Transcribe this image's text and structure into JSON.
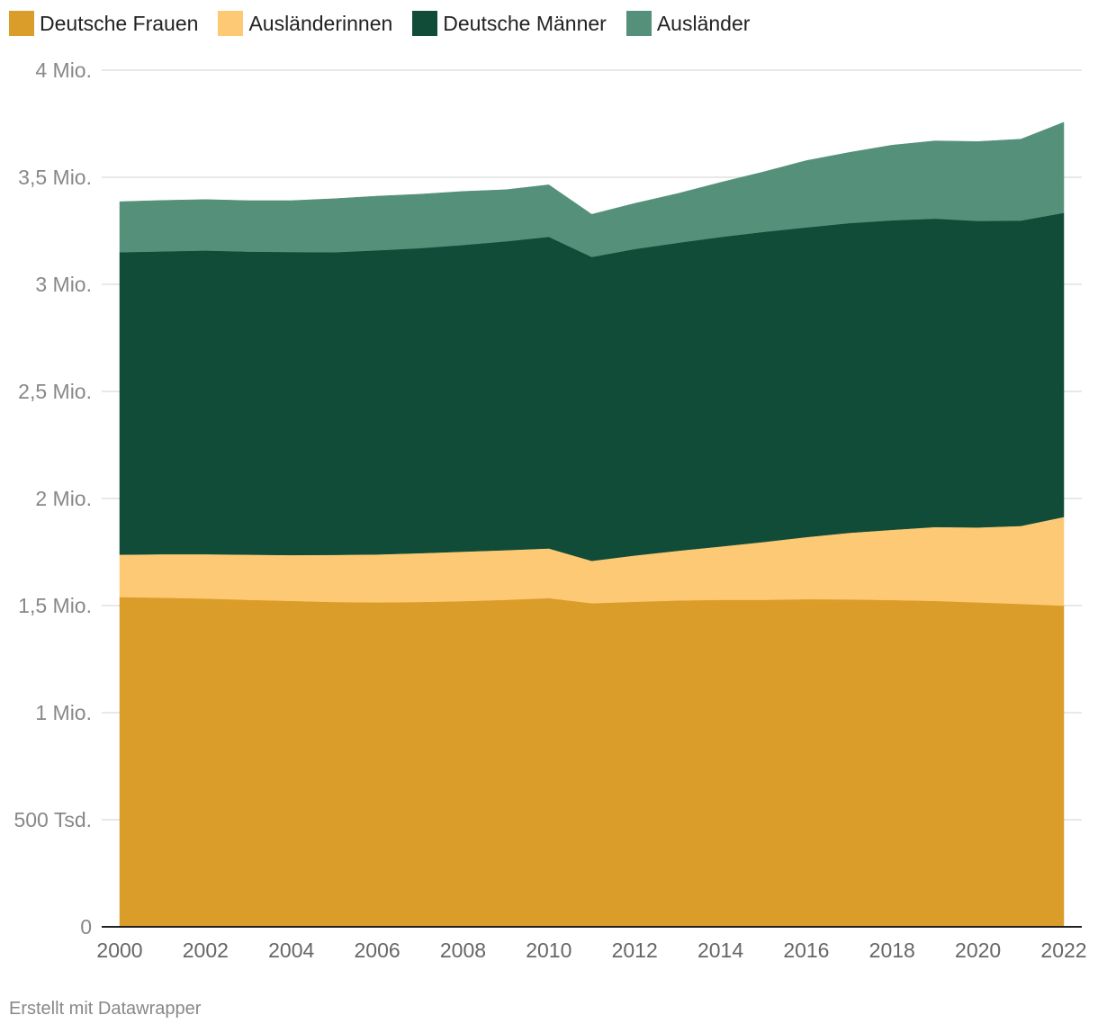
{
  "colors": {
    "deutsche_frauen": "#DB9D2A",
    "auslaenderinnen": "#FDC975",
    "deutsche_maenner": "#104C38",
    "auslaender": "#55917A"
  },
  "credit": "Erstellt mit Datawrapper",
  "chart_data": {
    "type": "area",
    "stacked": true,
    "legend_position": "top-left",
    "grid": true,
    "ylim": [
      0,
      4000000
    ],
    "y_ticks": [
      0,
      500000,
      1000000,
      1500000,
      2000000,
      2500000,
      3000000,
      3500000,
      4000000
    ],
    "y_tick_labels": [
      "0",
      "500 Tsd.",
      "1 Mio.",
      "1,5 Mio.",
      "2 Mio.",
      "2,5 Mio.",
      "3 Mio.",
      "3,5 Mio.",
      "4 Mio."
    ],
    "x_tick_labels": [
      "2000",
      "2002",
      "2004",
      "2006",
      "2008",
      "2010",
      "2012",
      "2014",
      "2016",
      "2018",
      "2020",
      "2022"
    ],
    "x": [
      2000,
      2001,
      2002,
      2003,
      2004,
      2005,
      2006,
      2007,
      2008,
      2009,
      2010,
      2011,
      2012,
      2013,
      2014,
      2015,
      2016,
      2017,
      2018,
      2019,
      2020,
      2021,
      2022
    ],
    "series": [
      {
        "name": "Deutsche Frauen",
        "color": "#DB9D2A",
        "values": [
          1540000,
          1537000,
          1533000,
          1527000,
          1522000,
          1517000,
          1515000,
          1517000,
          1521000,
          1527000,
          1535000,
          1511000,
          1518000,
          1524000,
          1527000,
          1527000,
          1530000,
          1529000,
          1526000,
          1522000,
          1515000,
          1508000,
          1500000
        ]
      },
      {
        "name": "Ausländerinnen",
        "color": "#FDC975",
        "values": [
          198000,
          203000,
          207000,
          211000,
          214000,
          220000,
          224000,
          228000,
          231000,
          232000,
          232000,
          198000,
          216000,
          232000,
          249000,
          270000,
          290000,
          311000,
          328000,
          345000,
          350000,
          364000,
          414000
        ]
      },
      {
        "name": "Deutsche Männer",
        "color": "#104C38",
        "values": [
          1412000,
          1414000,
          1418000,
          1415000,
          1415000,
          1413000,
          1420000,
          1424000,
          1432000,
          1442000,
          1455000,
          1419000,
          1431000,
          1438000,
          1445000,
          1448000,
          1446000,
          1446000,
          1445000,
          1440000,
          1431000,
          1426000,
          1420000
        ]
      },
      {
        "name": "Ausländer",
        "color": "#55917A",
        "values": [
          236000,
          238000,
          238000,
          238000,
          240000,
          250000,
          253000,
          252000,
          250000,
          241000,
          243000,
          199000,
          213000,
          230000,
          255000,
          280000,
          312000,
          330000,
          351000,
          363000,
          371000,
          380000,
          423000
        ]
      }
    ]
  }
}
